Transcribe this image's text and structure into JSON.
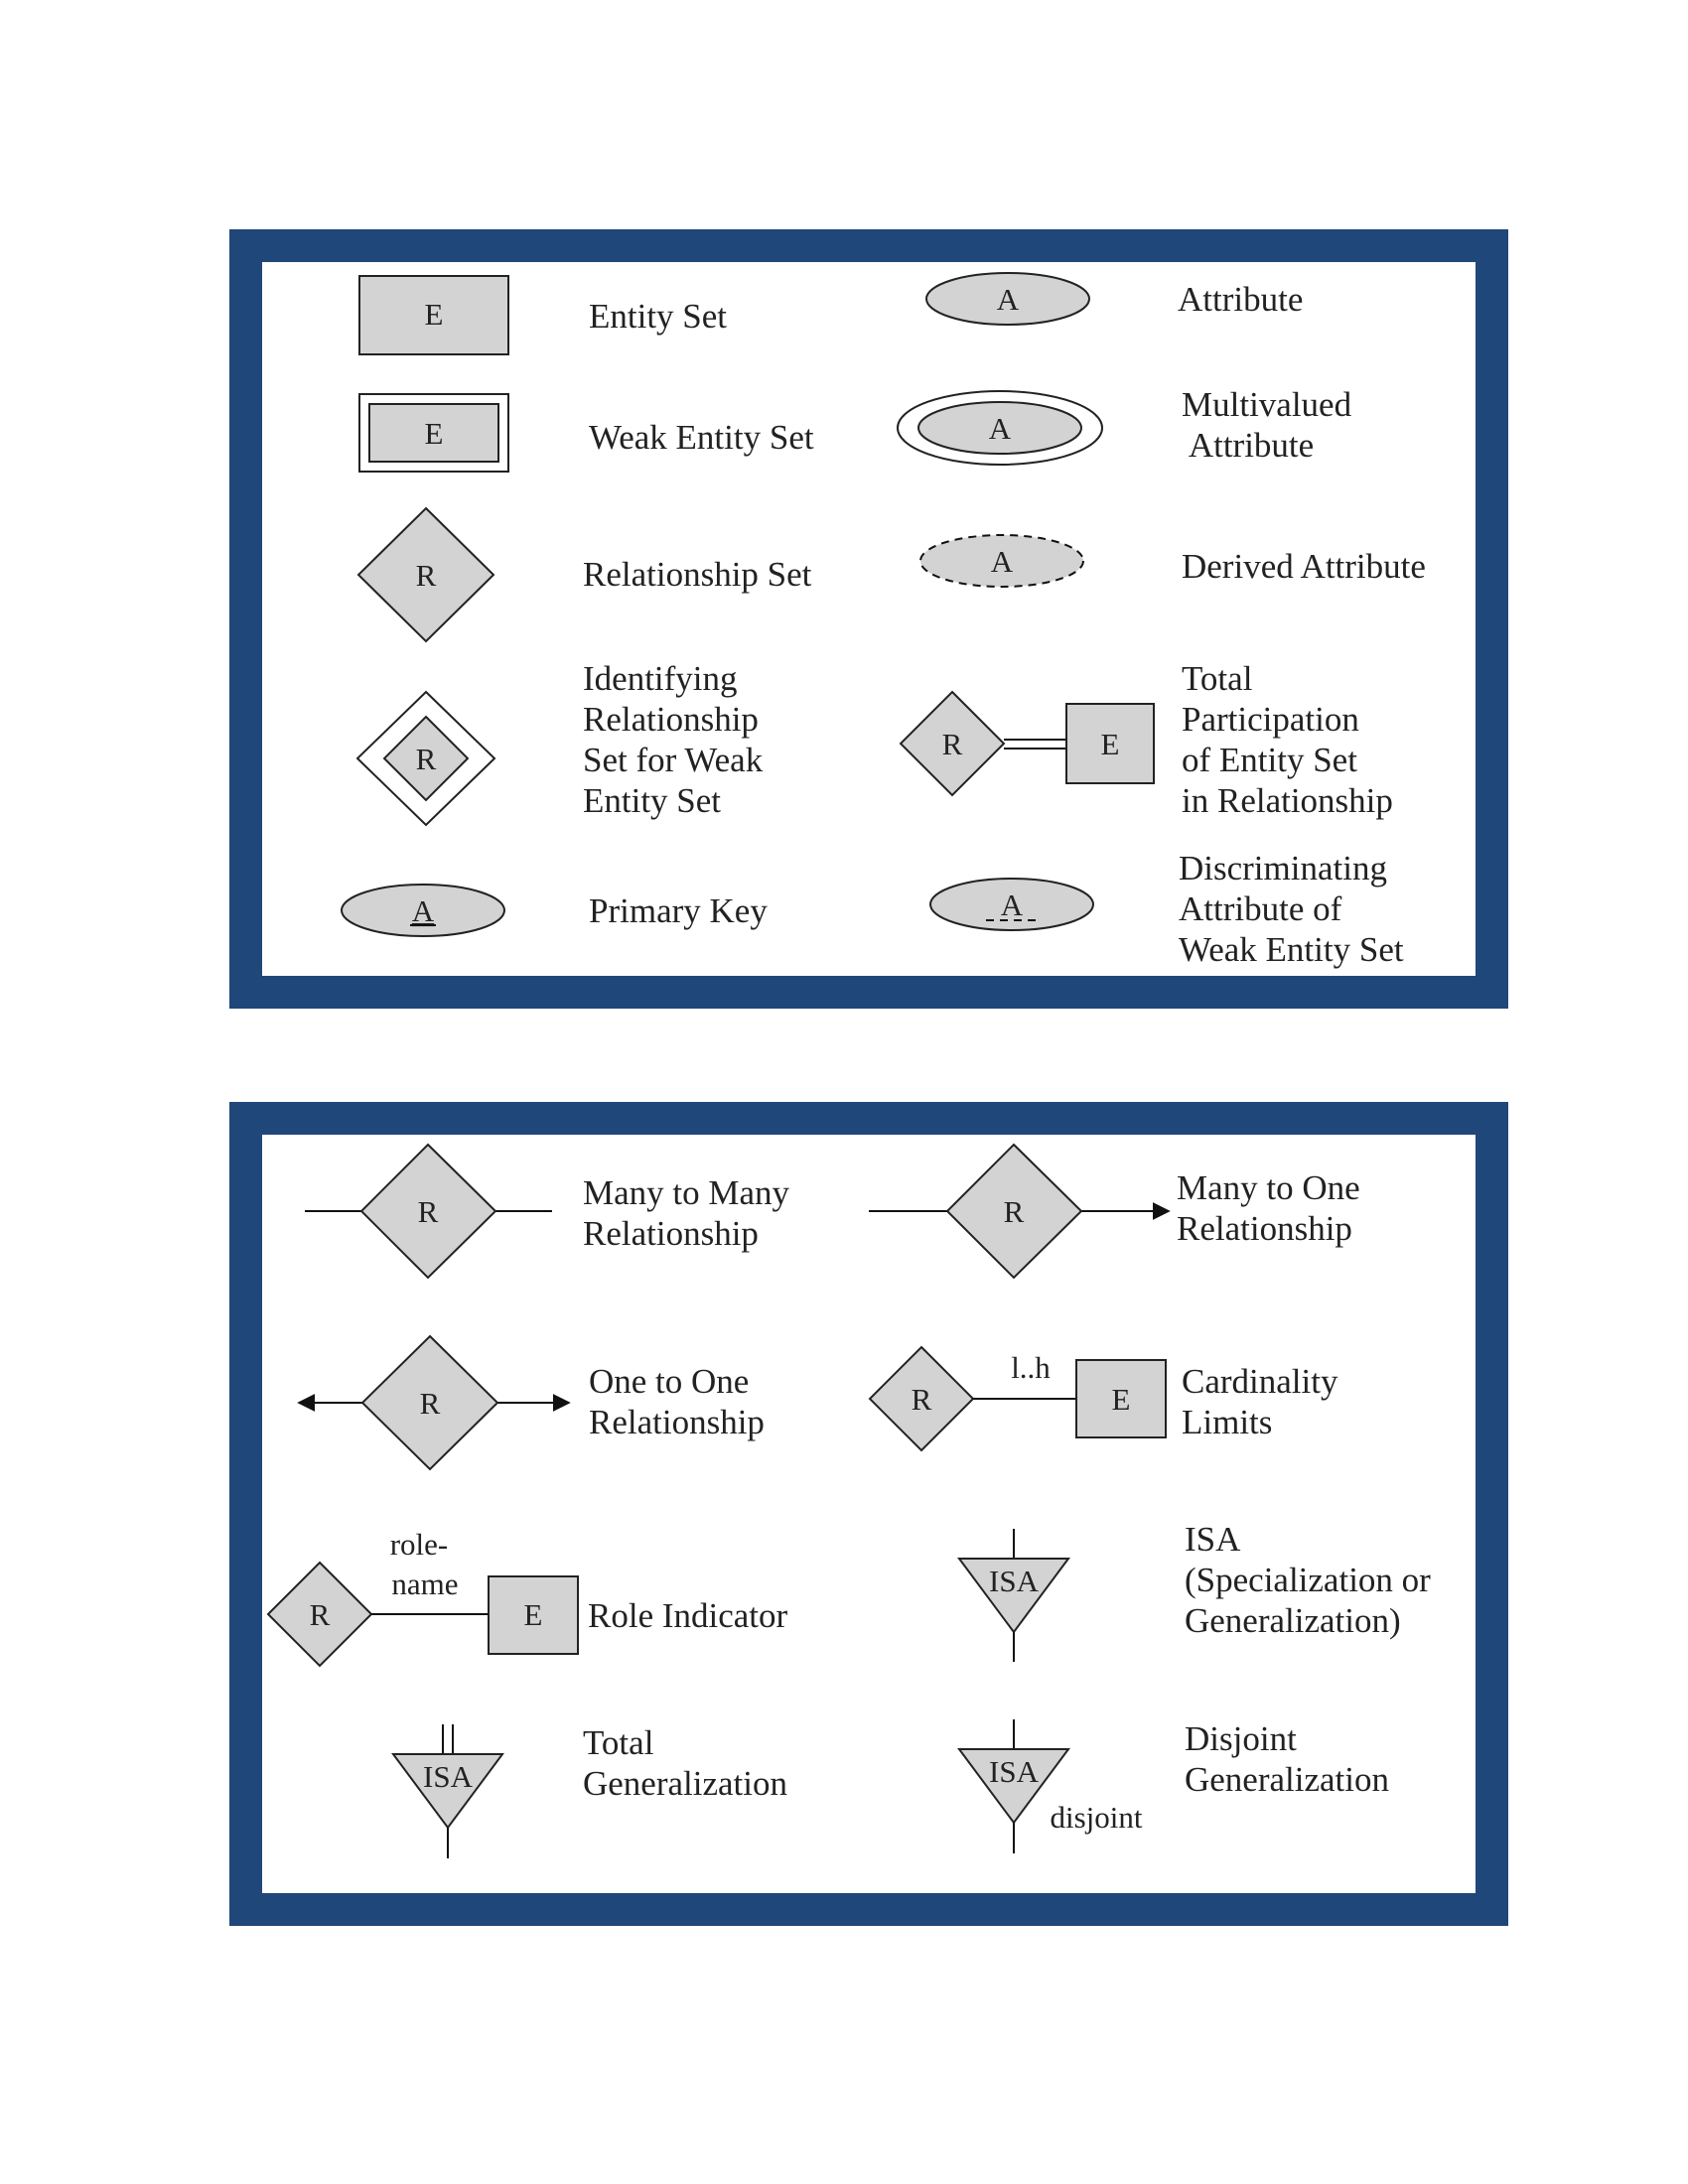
{
  "colors": {
    "frame": "#1f477a",
    "shape_fill": "#d3d3d3",
    "stroke": "#222222"
  },
  "symbols": {
    "entity": "E",
    "relationship": "R",
    "attribute": "A",
    "isa": "ISA",
    "cardinality_limit": "l..h",
    "role_name": [
      "role-",
      "name"
    ],
    "disjoint": "disjoint"
  },
  "panel_1": {
    "items": [
      {
        "id": "entity-set",
        "label": [
          "Entity Set"
        ]
      },
      {
        "id": "attribute",
        "label": [
          "Attribute"
        ]
      },
      {
        "id": "weak-entity-set",
        "label": [
          "Weak Entity Set"
        ]
      },
      {
        "id": "multivalued-attribute",
        "label": [
          "Multivalued",
          " Attribute"
        ]
      },
      {
        "id": "relationship-set",
        "label": [
          "Relationship Set"
        ]
      },
      {
        "id": "derived-attribute",
        "label": [
          "Derived Attribute"
        ]
      },
      {
        "id": "identifying-relationship-set",
        "label": [
          "Identifying",
          "Relationship",
          "Set for Weak",
          "Entity Set"
        ]
      },
      {
        "id": "total-participation",
        "label": [
          "Total",
          "Participation",
          "of Entity Set",
          "in Relationship"
        ]
      },
      {
        "id": "primary-key",
        "label": [
          "Primary Key"
        ]
      },
      {
        "id": "discriminating-attribute",
        "label": [
          "Discriminating",
          "Attribute of",
          "Weak Entity Set"
        ]
      }
    ]
  },
  "panel_2": {
    "items": [
      {
        "id": "many-to-many",
        "label": [
          "Many to Many",
          "Relationship"
        ]
      },
      {
        "id": "many-to-one",
        "label": [
          "Many to One",
          "Relationship"
        ]
      },
      {
        "id": "one-to-one",
        "label": [
          "One to One",
          "Relationship"
        ]
      },
      {
        "id": "cardinality-limits",
        "label": [
          "Cardinality",
          "Limits"
        ]
      },
      {
        "id": "role-indicator",
        "label": [
          "Role Indicator"
        ]
      },
      {
        "id": "isa",
        "label": [
          "ISA",
          "(Specialization or",
          "Generalization)"
        ]
      },
      {
        "id": "total-generalization",
        "label": [
          "Total",
          "Generalization"
        ]
      },
      {
        "id": "disjoint-generalization",
        "label": [
          "Disjoint",
          "Generalization"
        ]
      }
    ]
  }
}
